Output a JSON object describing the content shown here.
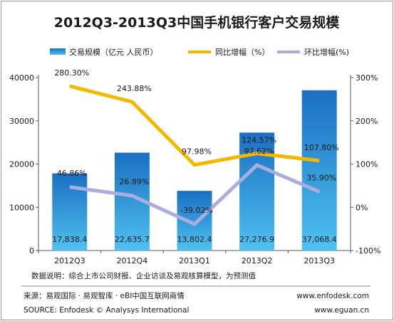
{
  "chart_data": {
    "type": "bar",
    "title": "2012Q3-2013Q3中国手机银行客户交易规模",
    "categories": [
      "2012Q3",
      "2012Q4",
      "2013Q1",
      "2013Q2",
      "2013Q3"
    ],
    "series": [
      {
        "name": "交易规模（亿元 人民币）",
        "type": "bar",
        "axis": "left",
        "color": "#2c8fd6",
        "values": [
          17838.4,
          22635.7,
          13802.4,
          27276.9,
          37068.4
        ],
        "labels": [
          "17,838.4",
          "22,635.7",
          "13,802.4",
          "27,276.9",
          "37,068.4"
        ]
      },
      {
        "name": "同比增幅（%）",
        "type": "line",
        "axis": "right",
        "color": "#f5b800",
        "values": [
          280.3,
          243.88,
          97.98,
          124.57,
          107.8
        ],
        "labels": [
          "280.30%",
          "243.88%",
          "97.98%",
          "124.57%",
          "107.80%"
        ]
      },
      {
        "name": "环比增幅(%)",
        "type": "line",
        "axis": "right",
        "color": "#a9aedd",
        "values": [
          46.86,
          26.89,
          -39.02,
          97.62,
          35.9
        ],
        "labels": [
          "46.86%",
          "26.89%",
          "-39.02%",
          "97.62%",
          "35.90%"
        ]
      }
    ],
    "y_left": {
      "min": 0,
      "max": 40000,
      "ticks": [
        "0",
        "10000",
        "20000",
        "30000",
        "40000"
      ]
    },
    "y_right": {
      "min": -100,
      "max": 300,
      "ticks": [
        "-100%",
        "0%",
        "100%",
        "200%",
        "300%"
      ]
    },
    "legend_position": "top"
  },
  "footer": {
    "note": "数据说明：综合上市公司财报、企业访谈及易观核算模型，为预测值",
    "source_cn": "来源：易观国际 · 易观智库 · eBI中国互联网商情",
    "source_en": "SOURCE: Enfodesk © Analysys International",
    "url1": "www.enfodesk.com",
    "url2": "www.eguan.cn"
  }
}
